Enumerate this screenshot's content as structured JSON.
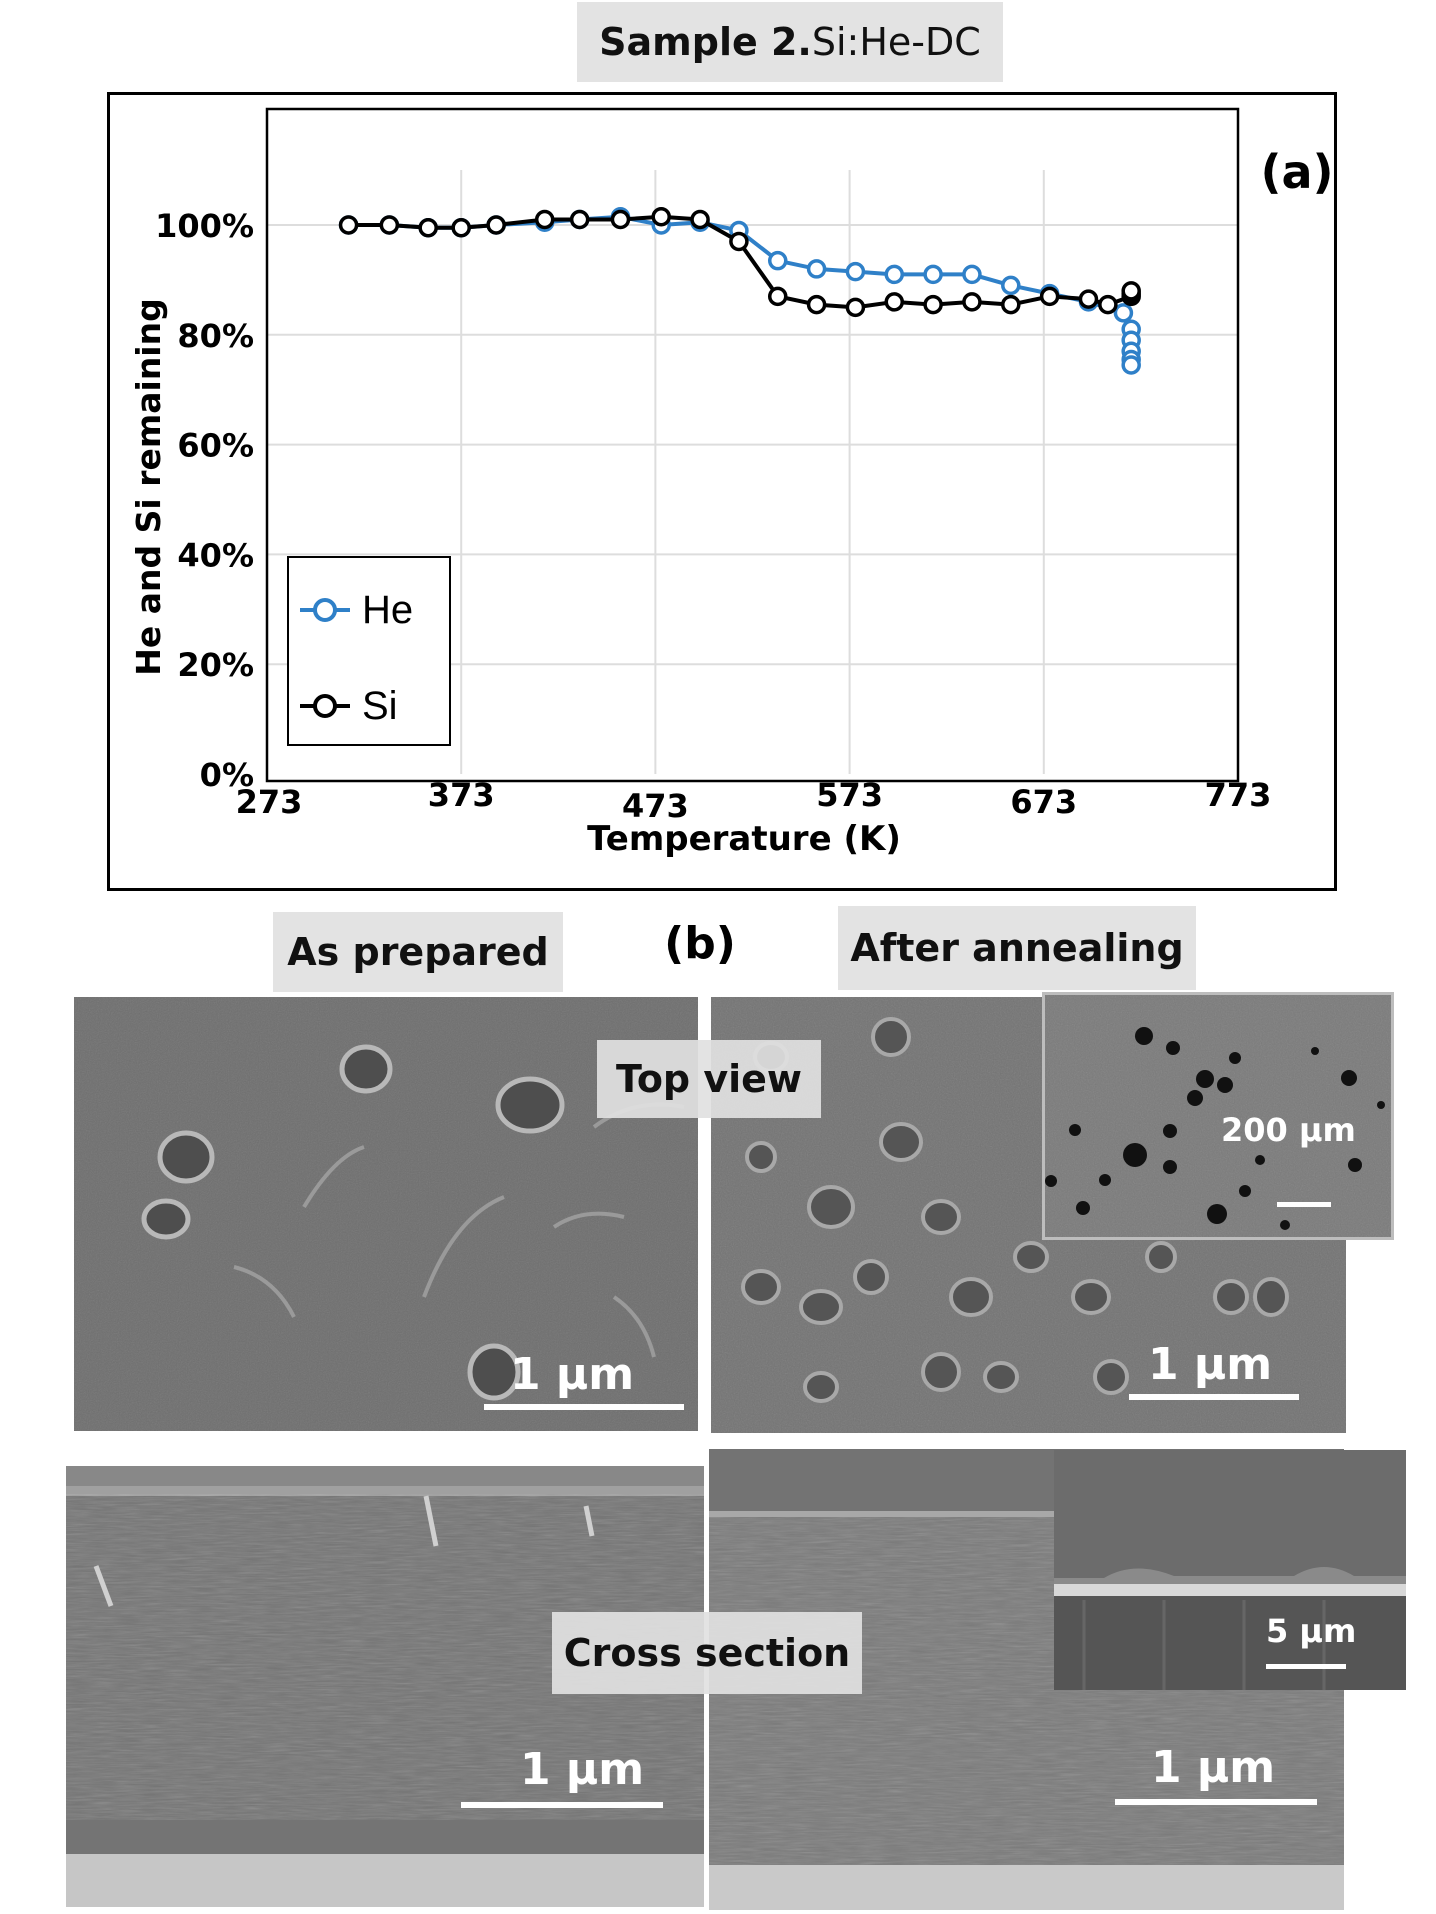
{
  "header": {
    "sample_bold": "Sample 2.",
    "sample_rest": " Si:He-DC"
  },
  "chart_data": {
    "type": "line",
    "panel_label": "(a)",
    "xlabel": "Temperature (K)",
    "ylabel": "He and Si  remaining",
    "xlim": [
      273,
      773
    ],
    "ylim": [
      0,
      1.2
    ],
    "x_ticks": [
      "273",
      "373",
      "473",
      "573",
      "673",
      "773"
    ],
    "y_ticks": [
      "0%",
      "20%",
      "40%",
      "60%",
      "80%",
      "100%"
    ],
    "legend_position": "bottom-left",
    "series": [
      {
        "name": "He",
        "color": "#2f80c8",
        "x": [
          315,
          336,
          356,
          373,
          391,
          416,
          434,
          455,
          476,
          496,
          516,
          536,
          556,
          576,
          596,
          616,
          636,
          656,
          676,
          696,
          714,
          718,
          718,
          718,
          718,
          718
        ],
        "y": [
          1.0,
          1.0,
          0.995,
          0.995,
          1.0,
          1.005,
          1.01,
          1.015,
          1.0,
          1.005,
          0.99,
          0.935,
          0.92,
          0.915,
          0.91,
          0.91,
          0.91,
          0.89,
          0.875,
          0.86,
          0.84,
          0.81,
          0.79,
          0.77,
          0.755,
          0.745
        ]
      },
      {
        "name": "Si",
        "color": "#000000",
        "x": [
          315,
          336,
          356,
          373,
          391,
          416,
          434,
          455,
          476,
          496,
          516,
          536,
          556,
          576,
          596,
          616,
          636,
          656,
          676,
          696,
          706,
          718,
          718,
          718
        ],
        "y": [
          1.0,
          1.0,
          0.995,
          0.995,
          1.0,
          1.01,
          1.01,
          1.01,
          1.015,
          1.01,
          0.97,
          0.87,
          0.855,
          0.85,
          0.86,
          0.855,
          0.86,
          0.855,
          0.87,
          0.865,
          0.855,
          0.87,
          0.875,
          0.88
        ]
      }
    ]
  },
  "panel_b": {
    "label": "(b)",
    "as_prepared": "As prepared",
    "after_annealing": "After annealing",
    "top_view": "Top view",
    "cross_section": "Cross section",
    "scale_1um": "1 μm",
    "scale_200um": "200 μm",
    "scale_5um": "5 μm"
  }
}
